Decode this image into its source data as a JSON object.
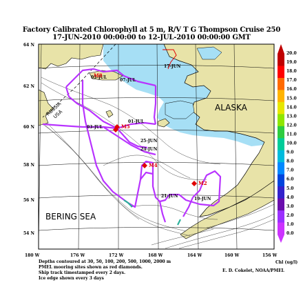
{
  "title_line1": "Factory Calibrated Chlorophyll at 5 m, R/V T G  Thompson Cruise 250",
  "title_line2": "17-JUN-2010 00:00:00 to 12-JUL-2010 00:00:00 GMT",
  "lat_labels": [
    "64 N",
    "62 N",
    "60 N",
    "58 N",
    "56 N",
    "54 N"
  ],
  "lon_labels": [
    "180 W",
    "176 W",
    "172 W",
    "168 W",
    "164 W",
    "160 W",
    "156 W"
  ],
  "colorbar": {
    "ticks": [
      "20.0",
      "19.0",
      "18.0",
      "17.0",
      "16.0",
      "15.0",
      "14.0",
      "13.0",
      "12.0",
      "11.0",
      "10.0",
      "9.0",
      "8.0",
      "7.0",
      "6.0",
      "5.0",
      "4.0",
      "3.0",
      "2.0",
      "1.0",
      "0.0"
    ],
    "label": "Chl (ug/l)",
    "colors": [
      "#c00000",
      "#ff0000",
      "#ff6a00",
      "#ffb400",
      "#e6e600",
      "#8fe600",
      "#2ecc40",
      "#00cc99",
      "#00bbdd",
      "#0088ff",
      "#0044dd",
      "#3322cc",
      "#6a0dad",
      "#9b30ff",
      "#cc33ff"
    ]
  },
  "places": {
    "alaska": "ALASKA",
    "bering_sea": "BERING SEA",
    "russia": "RUSSIA",
    "usa": "USA"
  },
  "track_labels": [
    "17-JUN",
    "05-JUL",
    "07-JUL",
    "01-JUL",
    "03-JUL",
    "23-JUN",
    "25-JUN",
    "21-JUN",
    "19-JUN"
  ],
  "moorings": [
    "M8",
    "M5",
    "M4",
    "M2"
  ],
  "notes": {
    "depths": "Depths contoured at 30, 50, 100, 200, 500, 1000, 2000 m",
    "moorings": "PMEL mooring sites shown as red diamonds.",
    "timestamps": "Ship track timestamped every 2 days.",
    "ice": "Ice edge shown every 3 days",
    "credit": "E. D. Cokelet, NOAA/PMEL"
  },
  "colors": {
    "ice_blue": "#a6dff5",
    "land": "#e8e3a8",
    "track": "#b833ff",
    "mooring": "#e00000"
  }
}
